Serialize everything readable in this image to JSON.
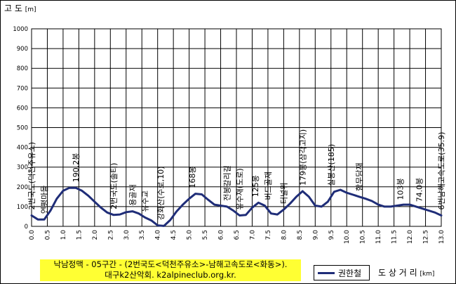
{
  "chart_data": {
    "type": "line",
    "ylabel": "고 도",
    "yunit": "[m]",
    "xlabel": "도 상 거 리",
    "xunit": "[km]",
    "xlim": [
      0,
      13
    ],
    "ylim": [
      0,
      1000
    ],
    "x_ticks": [
      "0.0",
      "0.5",
      "1.0",
      "1.5",
      "2.0",
      "2.5",
      "3.0",
      "3.5",
      "4.0",
      "4.5",
      "5.0",
      "5.5",
      "6.0",
      "6.5",
      "7.0",
      "7.5",
      "8.0",
      "8.5",
      "9.0",
      "9.5",
      "10.0",
      "10.5",
      "11.0",
      "11.5",
      "12.0",
      "12.5",
      "13.0"
    ],
    "y_ticks": [
      "0",
      "100",
      "200",
      "300",
      "400",
      "500",
      "600",
      "700",
      "800",
      "900",
      "1000"
    ],
    "grid": true,
    "series": [
      {
        "name": "권한철",
        "color": "#1f2d78",
        "x": [
          0,
          0.2,
          0.4,
          0.6,
          0.8,
          1.0,
          1.2,
          1.4,
          1.6,
          1.8,
          2.0,
          2.2,
          2.4,
          2.6,
          2.8,
          3.0,
          3.2,
          3.4,
          3.6,
          3.8,
          4.0,
          4.2,
          4.4,
          4.6,
          4.8,
          5.0,
          5.2,
          5.4,
          5.6,
          5.8,
          6.0,
          6.2,
          6.4,
          6.6,
          6.8,
          7.0,
          7.2,
          7.4,
          7.6,
          7.8,
          8.0,
          8.2,
          8.4,
          8.6,
          8.8,
          9.0,
          9.2,
          9.4,
          9.6,
          9.8,
          10.0,
          10.2,
          10.4,
          10.6,
          10.8,
          11.0,
          11.2,
          11.4,
          11.6,
          11.8,
          12.0,
          12.2,
          12.4,
          12.6,
          12.8,
          13.0
        ],
        "values": [
          55,
          35,
          35,
          80,
          140,
          180,
          195,
          195,
          180,
          155,
          125,
          95,
          70,
          58,
          60,
          72,
          76,
          65,
          45,
          30,
          5,
          2,
          32,
          75,
          110,
          140,
          165,
          162,
          135,
          110,
          105,
          100,
          80,
          55,
          58,
          95,
          120,
          105,
          65,
          60,
          85,
          115,
          150,
          178,
          150,
          105,
          100,
          125,
          175,
          185,
          170,
          160,
          150,
          140,
          128,
          110,
          100,
          100,
          105,
          110,
          110,
          100,
          90,
          80,
          70,
          55
        ]
      }
    ],
    "annotations": [
      {
        "x": 0.0,
        "y": 55,
        "label": "2번국도(덕천주유소)"
      },
      {
        "x": 0.4,
        "y": 35,
        "label": "연평마을"
      },
      {
        "x": 1.4,
        "y": 195,
        "label": "190.2봉"
      },
      {
        "x": 2.6,
        "y": 58,
        "label": "2번국도(솔티)"
      },
      {
        "x": 3.2,
        "y": 76,
        "label": "용골재"
      },
      {
        "x": 3.6,
        "y": 45,
        "label": "유수교"
      },
      {
        "x": 4.1,
        "y": 3,
        "label": "강화산(수로,10)"
      },
      {
        "x": 5.1,
        "y": 165,
        "label": "168봉"
      },
      {
        "x": 6.2,
        "y": 100,
        "label": "전봉갈리길"
      },
      {
        "x": 6.6,
        "y": 55,
        "label": "유수재(도로)"
      },
      {
        "x": 7.1,
        "y": 120,
        "label": "125봉"
      },
      {
        "x": 7.5,
        "y": 105,
        "label": "버드골재"
      },
      {
        "x": 8.0,
        "y": 85,
        "label": "터널위"
      },
      {
        "x": 8.6,
        "y": 178,
        "label": "179봉(삼각고지)"
      },
      {
        "x": 9.5,
        "y": 175,
        "label": "실봉산(185)"
      },
      {
        "x": 10.4,
        "y": 150,
        "label": "함무담재"
      },
      {
        "x": 11.7,
        "y": 105,
        "label": "103봉"
      },
      {
        "x": 12.3,
        "y": 95,
        "label": "74.0봉"
      },
      {
        "x": 13.0,
        "y": 55,
        "label": "6번남해고속도로(35.9)"
      }
    ]
  },
  "footer": {
    "line1": "낙남정맥 - 05구간 - (2번국도<덕천주유소>-남해고속도로<화동>).",
    "line2": "대구k2산악회. k2alpineclub.org.kr."
  }
}
